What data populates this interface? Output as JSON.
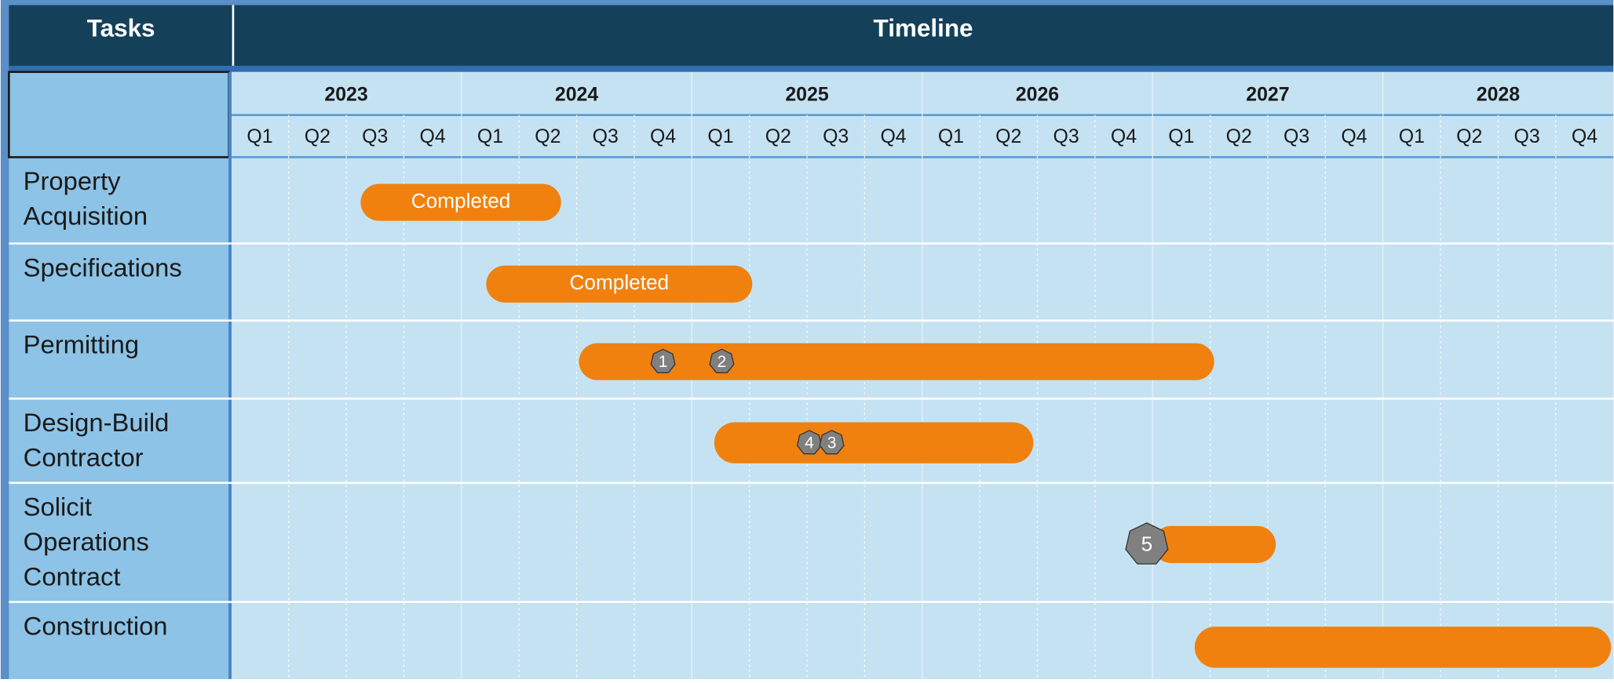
{
  "header": {
    "tasks": "Tasks",
    "timeline": "Timeline"
  },
  "years": [
    "2023",
    "2024",
    "2025",
    "2026",
    "2027",
    "2028"
  ],
  "quarters": [
    "Q1",
    "Q2",
    "Q3",
    "Q4"
  ],
  "tasks": [
    {
      "label": "Property Acquisition",
      "start": 2.25,
      "end": 5.73,
      "text": "Completed",
      "milestones": []
    },
    {
      "label": "Specifications",
      "start": 4.43,
      "end": 9.05,
      "text": "Completed",
      "milestones": []
    },
    {
      "label": "Permitting",
      "start": 6.04,
      "end": 17.07,
      "milestones": [
        {
          "label": "1",
          "at": 7.5
        },
        {
          "label": "2",
          "at": 8.52
        }
      ]
    },
    {
      "label": "Design-Build Contractor",
      "start": 8.39,
      "end": 13.93,
      "milestones": [
        {
          "label": "4",
          "at": 10.04
        },
        {
          "label": "3",
          "at": 10.43
        }
      ]
    },
    {
      "label": "Solicit Operations Contract",
      "start": 16.0,
      "end": 18.14,
      "milestones": [
        {
          "label": "5",
          "at": 15.9
        }
      ]
    },
    {
      "label": "Construction",
      "start": 16.73,
      "end": 23.96,
      "milestones": []
    }
  ]
}
